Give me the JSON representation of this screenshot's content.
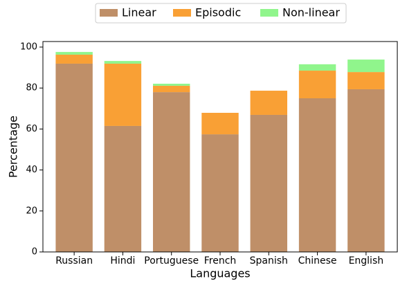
{
  "chart_data": {
    "type": "stacked_bar",
    "categories": [
      "Russian",
      "Hindi",
      "Portuguese",
      "French",
      "Spanish",
      "Chinese",
      "English"
    ],
    "series": [
      {
        "name": "Linear",
        "color": "#bf8f68",
        "values": [
          91.9,
          61.5,
          78.0,
          57.4,
          66.9,
          75.0,
          79.4
        ]
      },
      {
        "name": "Episodic",
        "color": "#f9a035",
        "values": [
          4.4,
          30.4,
          3.1,
          10.5,
          11.8,
          13.5,
          8.4
        ]
      },
      {
        "name": "Non-linear",
        "color": "#90f58c",
        "values": [
          1.3,
          1.3,
          1.0,
          0,
          0,
          3.1,
          6.1
        ]
      }
    ],
    "xlabel": "Languages",
    "ylabel": "Percentage",
    "ylim": [
      0,
      102.7
    ],
    "yticks": [
      0,
      20,
      40,
      60,
      80,
      100
    ],
    "legend": "top"
  }
}
